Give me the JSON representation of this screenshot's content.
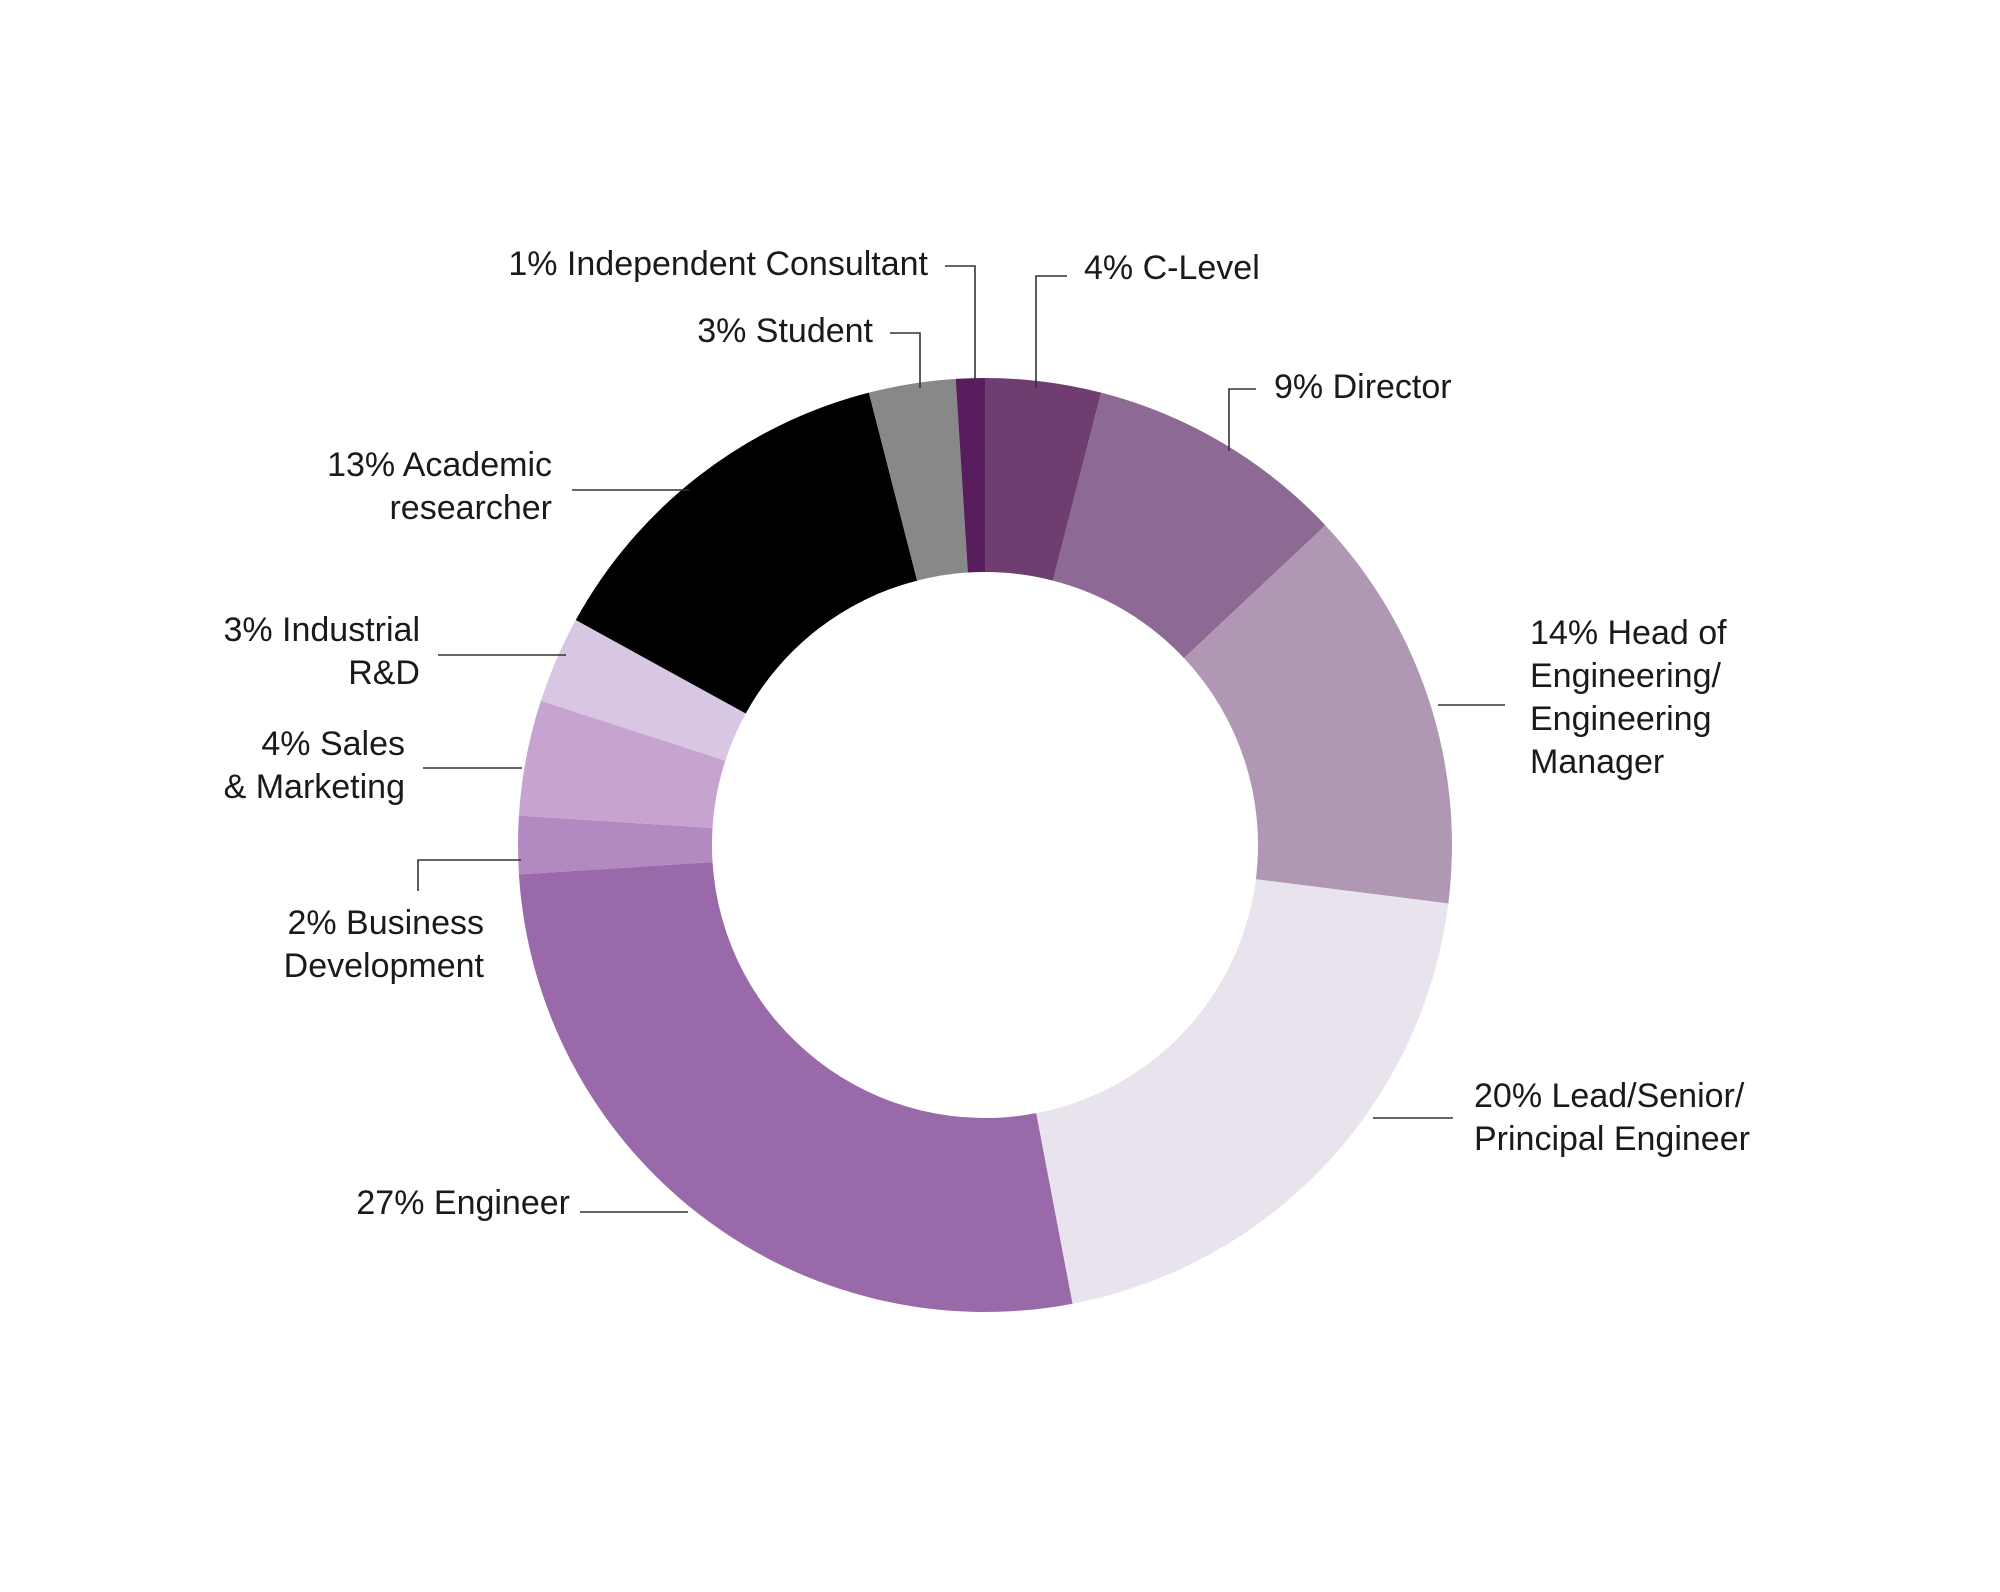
{
  "chart_data": {
    "type": "pie",
    "donut": true,
    "start": "top, clockwise",
    "slices": [
      {
        "label": [
          "4% C-Level"
        ],
        "value": 4,
        "color": "#6f3d6f"
      },
      {
        "label": [
          "9% Director"
        ],
        "value": 9,
        "color": "#8c6a93"
      },
      {
        "label": [
          "14% Head of",
          "Engineering/",
          "Engineering",
          "Manager"
        ],
        "value": 14,
        "color": "#b098b5"
      },
      {
        "label": [
          "20% Lead/Senior/",
          "Principal Engineer"
        ],
        "value": 20,
        "color": "#e8e3ec"
      },
      {
        "label": [
          "27% Engineer"
        ],
        "value": 27,
        "color": "#9969aa"
      },
      {
        "label": [
          "2% Business",
          "Development"
        ],
        "value": 2,
        "color": "#b289c1"
      },
      {
        "label": [
          "4% Sales",
          "& Marketing"
        ],
        "value": 4,
        "color": "#c6a4cf"
      },
      {
        "label": [
          "3% Industrial",
          "R&D"
        ],
        "value": 3,
        "color": "#d8c7e3"
      },
      {
        "label": [
          "13% Academic",
          "researcher"
        ],
        "value": 13,
        "color": "#000000"
      },
      {
        "label": [
          "3% Student"
        ],
        "value": 3,
        "color": "#888888"
      },
      {
        "label": [
          "1% Independent Consultant"
        ],
        "value": 1,
        "color": "#571d5d"
      }
    ]
  }
}
